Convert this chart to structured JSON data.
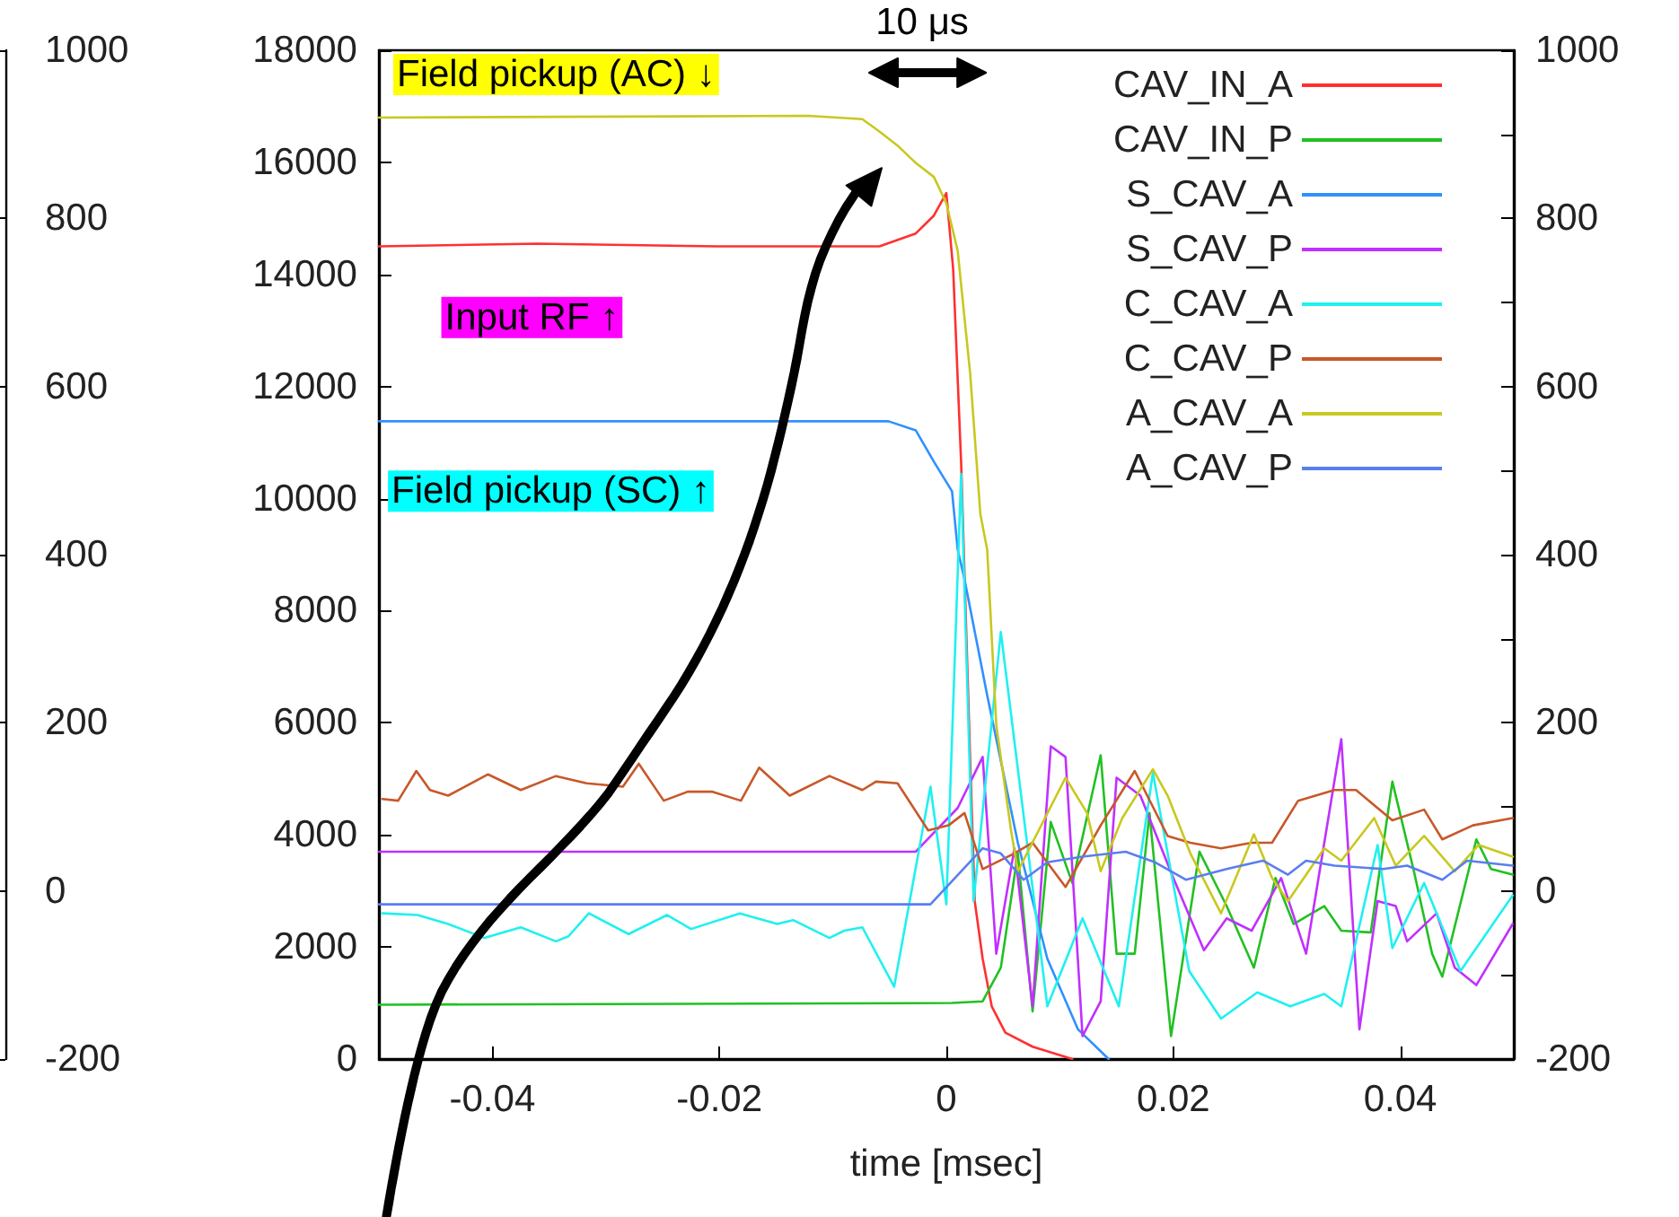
{
  "chart_data": {
    "type": "line",
    "xlabel": "time [msec]",
    "xlim": [
      -0.05,
      0.05
    ],
    "xticks": [
      -0.04,
      -0.02,
      0,
      0.02,
      0.04
    ],
    "ylim": [
      0,
      18000
    ],
    "yticks": [
      0,
      2000,
      4000,
      6000,
      8000,
      10000,
      12000,
      14000,
      16000,
      18000
    ],
    "y2lim": [
      -200,
      1000
    ],
    "y2ticks": [
      -200,
      0,
      200,
      400,
      600,
      800,
      1000
    ],
    "y3lim": [
      -200,
      1000
    ],
    "y3ticks": [
      -200,
      0,
      200,
      400,
      600,
      800,
      1000
    ],
    "grid": false,
    "legend": "top right",
    "marker": "none",
    "line_style": "solid",
    "annotations": [
      "Field pickup (AC) ↓",
      "Input RF ↑",
      "Field pickup (SC) ↑",
      "10 μs"
    ],
    "series": [
      {
        "name": "CAV_IN_A",
        "color": "#ff3030",
        "x": [
          -0.05,
          -0.036,
          -0.0201,
          -0.0059,
          -0.0027,
          -0.0011,
          0,
          0.0006,
          0.0013,
          0.0021,
          0.0025,
          0.0032,
          0.004,
          0.0052,
          0.0076,
          0.0111
        ],
        "values": [
          14500,
          14550,
          14500,
          14500,
          14730,
          15050,
          15450,
          14100,
          10660,
          5330,
          2820,
          1790,
          940,
          470,
          220,
          0
        ]
      },
      {
        "name": "CAV_IN_P",
        "color": "#22c022",
        "x": [
          -0.05,
          0.0005,
          0.0032,
          0.0048,
          0.0063,
          0.0076,
          0.0092,
          0.0111,
          0.0136,
          0.015,
          0.0166,
          0.0179,
          0.0198,
          0.0223,
          0.0247,
          0.0271,
          0.029,
          0.0306,
          0.0333,
          0.0348,
          0.0374,
          0.0393,
          0.0412,
          0.0428,
          0.0437,
          0.0467,
          0.048,
          0.0499
        ],
        "values": [
          970,
          1000,
          1030,
          1630,
          3670,
          850,
          4230,
          3140,
          5420,
          1880,
          1880,
          4390,
          410,
          3700,
          2730,
          1630,
          3230,
          2410,
          2730,
          2290,
          2260,
          4950,
          3350,
          1880,
          1470,
          3920,
          3390,
          3290
        ]
      },
      {
        "name": "S_CAV_A",
        "color": "#3090ff",
        "x": [
          -0.05,
          -0.0051,
          -0.0027,
          -0.0011,
          0.0005,
          0.001,
          0.0016,
          0.0036,
          0.0063,
          0.0089,
          0.0116,
          0.0143
        ],
        "values": [
          11380,
          11380,
          11220,
          10660,
          10130,
          9090,
          8560,
          6490,
          3860,
          1790,
          530,
          0
        ]
      },
      {
        "name": "S_CAV_P",
        "color": "#c030ff",
        "x": [
          -0.05,
          -0.0027,
          0.001,
          0.0032,
          0.0044,
          0.006,
          0.0076,
          0.0092,
          0.0105,
          0.012,
          0.0136,
          0.015,
          0.0171,
          0.02,
          0.0227,
          0.0247,
          0.0269,
          0.0295,
          0.0317,
          0.0348,
          0.0364,
          0.038,
          0.0396,
          0.0406,
          0.0432,
          0.0448,
          0.0467,
          0.0499
        ],
        "values": [
          3700,
          3700,
          4480,
          5390,
          1880,
          3760,
          940,
          5580,
          5390,
          410,
          1030,
          5020,
          4700,
          3230,
          1940,
          2510,
          2290,
          3230,
          1880,
          5710,
          530,
          2820,
          2730,
          2100,
          2600,
          1630,
          1320,
          2410
        ]
      },
      {
        "name": "C_CAV_A",
        "color": "#20f0f0",
        "x": [
          -0.0497,
          -0.0466,
          -0.0439,
          -0.0407,
          -0.0375,
          -0.0344,
          -0.0333,
          -0.0315,
          -0.028,
          -0.0246,
          -0.0225,
          -0.0182,
          -0.0149,
          -0.0135,
          -0.0103,
          -0.009,
          -0.0074,
          -0.0046,
          -0.0014,
          0,
          0.0013,
          0.0024,
          0.0048,
          0.0089,
          0.012,
          0.0152,
          0.0182,
          0.0214,
          0.0242,
          0.0274,
          0.0303,
          0.0333,
          0.0348,
          0.038,
          0.0393,
          0.0421,
          0.0453,
          0.0499
        ],
        "values": [
          2600,
          2570,
          2410,
          2160,
          2350,
          2100,
          2190,
          2600,
          2230,
          2570,
          2320,
          2600,
          2410,
          2480,
          2160,
          2290,
          2350,
          1290,
          4860,
          2760,
          10440,
          2820,
          7620,
          940,
          2510,
          940,
          5110,
          1570,
          720,
          1190,
          940,
          1160,
          940,
          3820,
          1980,
          3140,
          1570,
          2920
        ]
      },
      {
        "name": "C_CAV_P",
        "color": "#c8582a",
        "x": [
          -0.0497,
          -0.0483,
          -0.0467,
          -0.0455,
          -0.0439,
          -0.0404,
          -0.0375,
          -0.0344,
          -0.0317,
          -0.0285,
          -0.0271,
          -0.0249,
          -0.0228,
          -0.0206,
          -0.0181,
          -0.0165,
          -0.0138,
          -0.0103,
          -0.0074,
          -0.0062,
          -0.0043,
          -0.0016,
          0.0002,
          0.0016,
          0.0032,
          0.006,
          0.0076,
          0.0105,
          0.0136,
          0.0166,
          0.0195,
          0.0215,
          0.0242,
          0.0269,
          0.0287,
          0.031,
          0.0342,
          0.0361,
          0.0393,
          0.0421,
          0.0437,
          0.0464,
          0.0499
        ],
        "values": [
          4640,
          4610,
          5140,
          4800,
          4700,
          5080,
          4800,
          5050,
          4920,
          4860,
          5270,
          4610,
          4770,
          4770,
          4610,
          5200,
          4700,
          5050,
          4800,
          4950,
          4920,
          4080,
          4170,
          4390,
          3390,
          3670,
          3860,
          3070,
          4170,
          5140,
          3980,
          3860,
          3760,
          3860,
          3860,
          4610,
          4800,
          4800,
          4260,
          4450,
          3920,
          4170,
          4300
        ]
      },
      {
        "name": "A_CAV_A",
        "color": "#c8c820",
        "x": [
          -0.05,
          -0.0122,
          -0.0074,
          -0.0059,
          -0.0043,
          -0.0027,
          -0.0011,
          0,
          0.001,
          0.0021,
          0.003,
          0.0036,
          0.0044,
          0.0057,
          0.0063,
          0.0105,
          0.0124,
          0.0136,
          0.0155,
          0.0182,
          0.0195,
          0.0215,
          0.0242,
          0.0271,
          0.0287,
          0.0301,
          0.0333,
          0.0348,
          0.0377,
          0.0396,
          0.0421,
          0.0448,
          0.0469,
          0.0499
        ],
        "values": [
          16800,
          16830,
          16770,
          16550,
          16300,
          15990,
          15740,
          15270,
          14420,
          12230,
          9720,
          9090,
          5960,
          4080,
          3350,
          5020,
          4390,
          3350,
          4300,
          5170,
          4700,
          3670,
          2600,
          4010,
          3230,
          2820,
          3760,
          3540,
          4300,
          3450,
          3980,
          3350,
          3820,
          3610
        ]
      },
      {
        "name": "A_CAV_P",
        "color": "#5a7ef0",
        "x": [
          -0.05,
          -0.0014,
          0.0032,
          0.0048,
          0.0068,
          0.0089,
          0.012,
          0.0158,
          0.0184,
          0.0211,
          0.0247,
          0.0279,
          0.0301,
          0.0317,
          0.0342,
          0.0385,
          0.0406,
          0.0437,
          0.0459,
          0.0499
        ],
        "values": [
          2760,
          2760,
          3760,
          3670,
          3200,
          3510,
          3610,
          3700,
          3510,
          3200,
          3390,
          3540,
          3290,
          3540,
          3450,
          3390,
          3450,
          3200,
          3540,
          3450
        ]
      }
    ]
  }
}
